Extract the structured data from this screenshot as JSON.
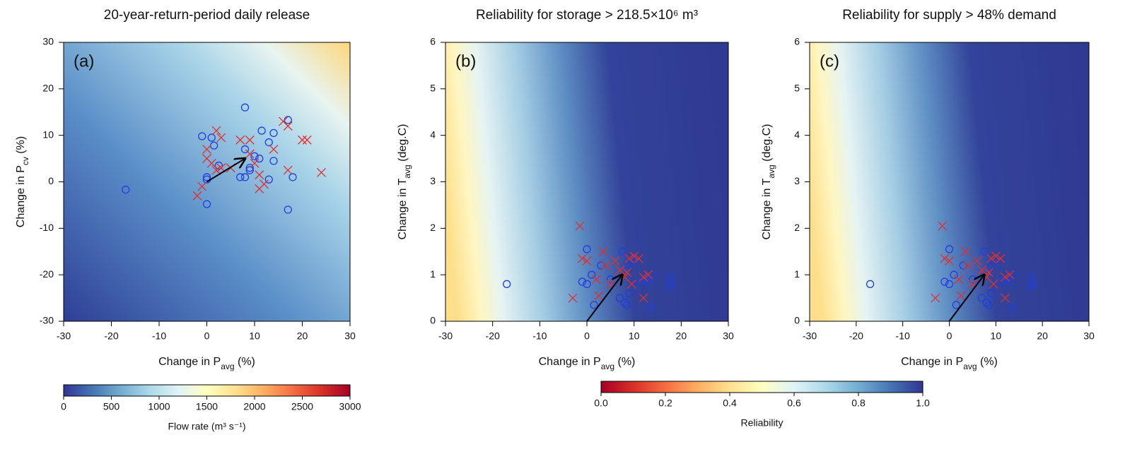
{
  "chart_data": [
    {
      "type": "scatter",
      "title": "20-year-return-period daily release",
      "panel_label": "(a)",
      "xlabel": [
        "Change in  P",
        "avg",
        " (%)"
      ],
      "ylabel": [
        "Change in P",
        "cv",
        " (%)"
      ],
      "xlim": [
        -30,
        30
      ],
      "xticks": [
        -30,
        -20,
        -10,
        0,
        10,
        20,
        30
      ],
      "ylim": [
        -30,
        30
      ],
      "yticks": [
        -30,
        -20,
        -10,
        0,
        10,
        20,
        30
      ],
      "series": [
        {
          "marker": "circle",
          "color": "#1f3fe0",
          "x": [
            -17,
            -1,
            1,
            1.5,
            0,
            0,
            0,
            2.5,
            8,
            7,
            8,
            8,
            10,
            11,
            9,
            9,
            11.5,
            13,
            14,
            17,
            14,
            13,
            18,
            17
          ],
          "y": [
            -1.7,
            9.8,
            9.5,
            7.8,
            0.5,
            1,
            -4.8,
            3.5,
            1,
            1,
            7,
            16,
            5.5,
            5,
            3,
            2.5,
            11,
            8.5,
            10.5,
            13.3,
            4.5,
            0.5,
            1,
            -6
          ]
        },
        {
          "marker": "x",
          "color": "#e03030",
          "x": [
            -2,
            -1,
            0,
            0,
            1,
            2,
            2,
            3,
            3,
            5,
            7,
            9,
            9,
            10,
            11,
            11,
            12,
            14,
            16,
            17,
            17,
            20,
            21,
            24
          ],
          "y": [
            -3,
            -1,
            7,
            5,
            4,
            11,
            2.5,
            3,
            9.5,
            3,
            9,
            9,
            6,
            4,
            -1.5,
            1.5,
            -0.5,
            7,
            13,
            12,
            2.5,
            9,
            9,
            2
          ]
        }
      ],
      "arrow": {
        "x": [
          0,
          8
        ],
        "y": [
          0,
          5
        ]
      }
    },
    {
      "type": "scatter",
      "title": "Reliability for storage > 218.5×10⁶ m³",
      "panel_label": "(b)",
      "xlabel": [
        "Change in  P",
        "avg",
        " (%)"
      ],
      "ylabel": [
        "Change in T",
        "avg",
        " (deg.C)"
      ],
      "xlim": [
        -30,
        30
      ],
      "xticks": [
        -30,
        -20,
        -10,
        0,
        10,
        20,
        30
      ],
      "ylim": [
        0,
        6
      ],
      "yticks": [
        0,
        1,
        2,
        3,
        4,
        5,
        6
      ],
      "series": [
        {
          "marker": "circle",
          "color": "#1f3fe0",
          "x": [
            -17,
            0,
            1,
            -1,
            0,
            1.5,
            3,
            5,
            7.5,
            7,
            8,
            8.5,
            9,
            9,
            10,
            11,
            12.5,
            13,
            13.5,
            14,
            17.5,
            17.5,
            18
          ],
          "y": [
            0.8,
            1.55,
            1.0,
            0.85,
            0.8,
            0.35,
            1.2,
            0.9,
            1.5,
            0.5,
            0.4,
            0.35,
            0.6,
            1.2,
            1.3,
            0.85,
            0.9,
            0.85,
            0.3,
            1.0,
            0.75,
            0.95,
            0.8
          ]
        },
        {
          "marker": "x",
          "color": "#e03030",
          "x": [
            -3,
            -1.5,
            -1,
            0,
            2,
            2.5,
            3.5,
            4,
            5,
            6,
            7,
            8,
            8.5,
            9,
            9.5,
            10,
            11,
            12,
            12,
            13
          ],
          "y": [
            0.5,
            2.05,
            1.35,
            1.3,
            0.9,
            0.55,
            1.5,
            1.2,
            0.8,
            1.3,
            1.1,
            0.95,
            1.05,
            1.35,
            0.8,
            1.4,
            1.35,
            0.5,
            0.95,
            1.0
          ]
        }
      ],
      "arrow": {
        "x": [
          0,
          7.5
        ],
        "y": [
          0,
          1.0
        ]
      }
    },
    {
      "type": "scatter",
      "title": "Reliability for supply > 48% demand",
      "panel_label": "(c)",
      "xlabel": [
        "Change in  P",
        "avg",
        " (%)"
      ],
      "ylabel": [
        "Change in T",
        "avg",
        " (deg.C)"
      ],
      "xlim": [
        -30,
        30
      ],
      "xticks": [
        -30,
        -20,
        -10,
        0,
        10,
        20,
        30
      ],
      "ylim": [
        0,
        6
      ],
      "yticks": [
        0,
        1,
        2,
        3,
        4,
        5,
        6
      ],
      "series": [
        {
          "marker": "circle",
          "color": "#1f3fe0",
          "x": [
            -17,
            0,
            1,
            -1,
            0,
            1.5,
            3,
            5,
            7.5,
            7,
            8,
            8.5,
            9,
            9,
            10,
            11,
            12.5,
            13,
            13.5,
            14,
            17.5,
            17.5,
            18
          ],
          "y": [
            0.8,
            1.55,
            1.0,
            0.85,
            0.8,
            0.35,
            1.2,
            0.9,
            1.5,
            0.5,
            0.4,
            0.35,
            0.6,
            1.2,
            1.3,
            0.85,
            0.9,
            0.85,
            0.3,
            1.0,
            0.75,
            0.95,
            0.8
          ]
        },
        {
          "marker": "x",
          "color": "#e03030",
          "x": [
            -3,
            -1.5,
            -1,
            0,
            2,
            2.5,
            3.5,
            4,
            5,
            6,
            7,
            8,
            8.5,
            9,
            9.5,
            10,
            11,
            12,
            12,
            13
          ],
          "y": [
            0.5,
            2.05,
            1.35,
            1.3,
            0.9,
            0.55,
            1.5,
            1.2,
            0.8,
            1.3,
            1.1,
            0.95,
            1.05,
            1.35,
            0.8,
            1.4,
            1.35,
            0.5,
            0.95,
            1.0
          ]
        }
      ],
      "arrow": {
        "x": [
          0,
          7.5
        ],
        "y": [
          0,
          1.0
        ]
      }
    }
  ],
  "colorbars": [
    {
      "label": "Flow rate (m³ s⁻¹)",
      "lim": [
        0,
        3000
      ],
      "ticks": [
        0,
        500,
        1000,
        1500,
        2000,
        2500,
        3000
      ],
      "colors": [
        "#313695",
        "#4575b4",
        "#74add1",
        "#abd9e9",
        "#e0f3f8",
        "#ffffbf",
        "#fee090",
        "#fdae61",
        "#f46d43",
        "#d73027",
        "#a50026"
      ]
    },
    {
      "label": "Reliability",
      "lim": [
        0,
        1
      ],
      "ticks": [
        {
          "value": 0,
          "label": "0.0"
        },
        0.2,
        0.4,
        0.6,
        0.8,
        {
          "value": 1,
          "label": "1.0"
        }
      ],
      "colors": [
        "#a50026",
        "#d73027",
        "#f46d43",
        "#fdae61",
        "#fee090",
        "#ffffbf",
        "#e0f3f8",
        "#abd9e9",
        "#74add1",
        "#4575b4",
        "#313695"
      ]
    }
  ]
}
